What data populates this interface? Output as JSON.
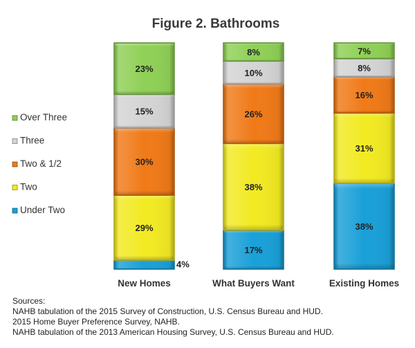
{
  "chart_data": {
    "type": "bar",
    "stacked": true,
    "title": "Figure 2.  Bathrooms",
    "categories": [
      "New Homes",
      "What Buyers Want",
      "Existing Homes"
    ],
    "series": [
      {
        "name": "Under Two",
        "values": [
          4,
          17,
          38
        ],
        "labels": [
          "4%",
          "17%",
          "38%"
        ],
        "color": "#1aa0d8"
      },
      {
        "name": "Two",
        "values": [
          29,
          38,
          31
        ],
        "labels": [
          "29%",
          "38%",
          "31%"
        ],
        "color": "#f2ea22"
      },
      {
        "name": "Two & 1/2",
        "values": [
          30,
          26,
          16
        ],
        "labels": [
          "30%",
          "26%",
          "16%"
        ],
        "color": "#f07a18"
      },
      {
        "name": "Three",
        "values": [
          15,
          10,
          8
        ],
        "labels": [
          "15%",
          "10%",
          "8%"
        ],
        "color": "#d4d4d4"
      },
      {
        "name": "Over Three",
        "values": [
          23,
          8,
          7
        ],
        "labels": [
          "23%",
          "8%",
          "7%"
        ],
        "color": "#8fd056"
      }
    ],
    "legend_order": [
      "Over Three",
      "Three",
      "Two & 1/2",
      "Two",
      "Under Two"
    ],
    "legend_position": "left",
    "sources": [
      "Sources:",
      "NAHB tabulation of the 2015 Survey of Construction, U.S. Census Bureau and HUD.",
      "2015 Home Buyer Preference  Survey, NAHB.",
      "NAHB tabulation of the 2013 American Housing Survey, U.S. Census Bureau and HUD."
    ]
  }
}
